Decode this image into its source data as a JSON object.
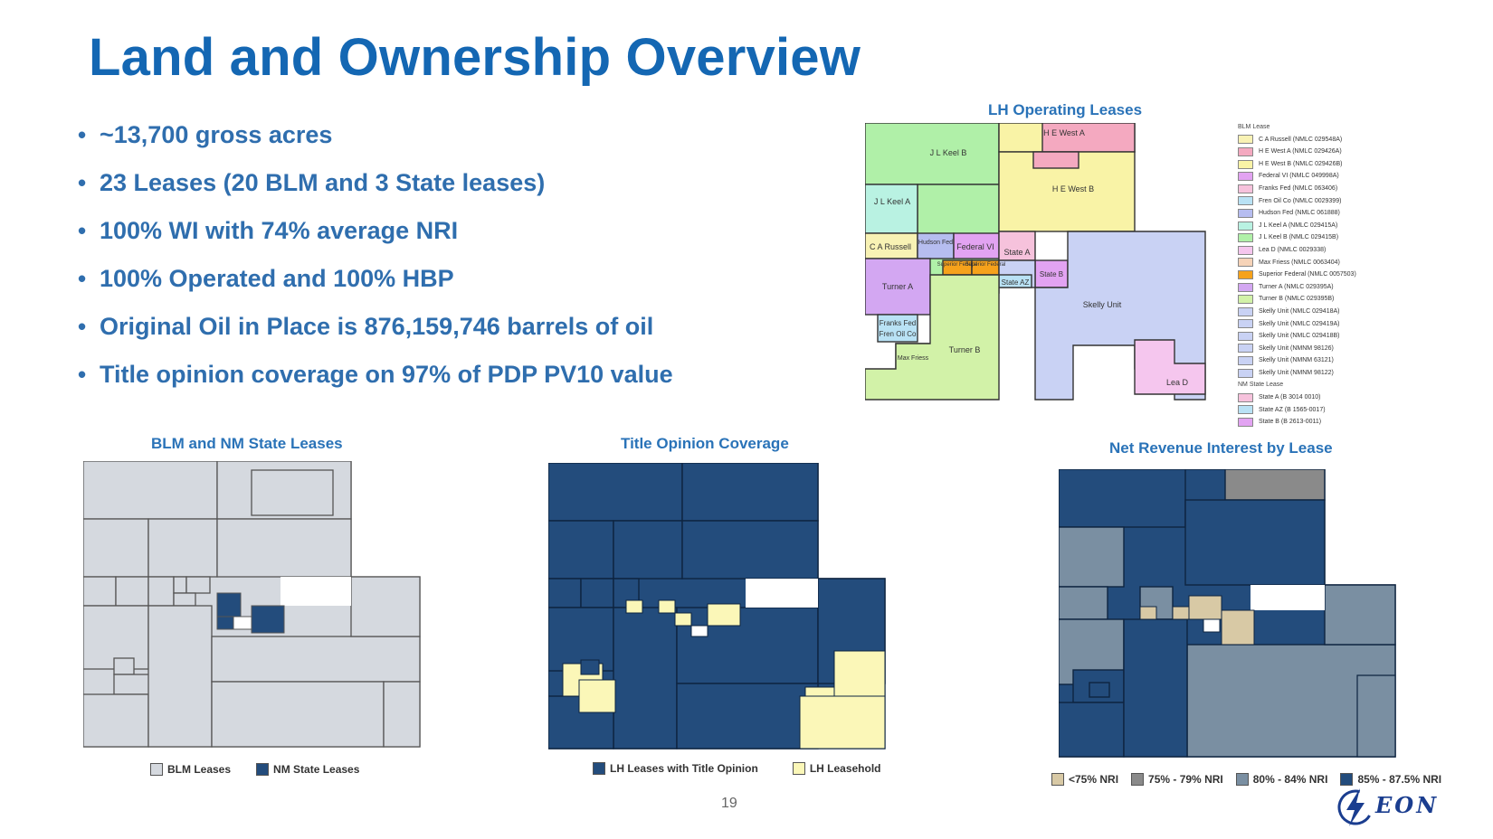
{
  "title": "Land and Ownership Overview",
  "bullets": [
    "~13,700 gross acres",
    "23 Leases (20 BLM and 3 State leases)",
    "100% WI with 74% average NRI",
    "100% Operated and 100% HBP",
    "Original Oil in Place is 876,159,746 barrels of oil",
    "Title opinion coverage on 97% of PDP PV10 value"
  ],
  "operating_map": {
    "caption": "LH Operating Leases",
    "labels": {
      "jl_keel_b": "J L Keel B",
      "he_west_a": "H E West A",
      "he_west_b": "H E West B",
      "jl_keel_a": "J L Keel A",
      "ca_russell": "C A Russell",
      "hudson_fed": "Hudson Fed",
      "federal_vi": "Federal VI",
      "state_a": "State A",
      "superior_fed": "Superior Federal",
      "superior_fed2": "Superior Federal",
      "state_b": "State B",
      "state_az": "State AZ",
      "turner_a": "Turner A",
      "skelly_unit": "Skelly Unit",
      "franks_fed": "Franks Fed",
      "fren_oil_co": "Fren Oil Co",
      "turner_b": "Turner B",
      "max_friess": "Max Friess",
      "lea_d": "Lea D"
    },
    "legend": {
      "blm_heading": "BLM Lease",
      "nm_heading": "NM State Lease",
      "blm_items": [
        {
          "label": "C A Russell (NMLC 029548A)",
          "color": "#f8f2b4"
        },
        {
          "label": "H E West A (NMLC 029426A)",
          "color": "#f4a9c0"
        },
        {
          "label": "H E West B (NMLC 029426B)",
          "color": "#f9f3a6"
        },
        {
          "label": "Federal VI (NMLC 049998A)",
          "color": "#e2a3f2"
        },
        {
          "label": "Franks Fed (NMLC 063406)",
          "color": "#f6c2dc"
        },
        {
          "label": "Fren Oil Co (NMLC 0029399)",
          "color": "#b9e2f5"
        },
        {
          "label": "Hudson Fed (NMLC 061888)",
          "color": "#b6bdf0"
        },
        {
          "label": "J L Keel A (NMLC 029415A)",
          "color": "#b9f2e2"
        },
        {
          "label": "J L Keel B (NMLC 029415B)",
          "color": "#b0f0a8"
        },
        {
          "label": "Lea D (NMLC 0029338)",
          "color": "#f5c6ee"
        },
        {
          "label": "Max Friess (NMLC 0063404)",
          "color": "#f6d3b8"
        },
        {
          "label": "Superior Federal (NMLC 0057503)",
          "color": "#f6a21b"
        },
        {
          "label": "Turner A (NMLC 029395A)",
          "color": "#d3a7f2"
        },
        {
          "label": "Turner B (NMLC 029395B)",
          "color": "#d2f2a8"
        },
        {
          "label": "Skelly Unit (NMLC 029418A)",
          "color": "#c9d2f4"
        },
        {
          "label": "Skelly Unit (NMLC 029419A)",
          "color": "#c9d2f4"
        },
        {
          "label": "Skelly Unit (NMLC 029418B)",
          "color": "#c9d2f4"
        },
        {
          "label": "Skelly Unit (NMNM 98126)",
          "color": "#c9d2f4"
        },
        {
          "label": "Skelly Unit (NMNM 63121)",
          "color": "#c9d2f4"
        },
        {
          "label": "Skelly Unit (NMNM 98122)",
          "color": "#c9d2f4"
        }
      ],
      "nm_items": [
        {
          "label": "State A (B 3014 0010)",
          "color": "#f6c2dc"
        },
        {
          "label": "State AZ (B 1565-0017)",
          "color": "#b9e2f5"
        },
        {
          "label": "State B (B 2613-0011)",
          "color": "#e2a3f2"
        }
      ]
    }
  },
  "blm_map": {
    "caption": "BLM and NM State Leases",
    "legend": [
      {
        "label": "BLM Leases",
        "color": "#d5d9df"
      },
      {
        "label": "NM State Leases",
        "color": "#234c7c"
      }
    ]
  },
  "title_map": {
    "caption": "Title Opinion Coverage",
    "legend": [
      {
        "label": "LH Leases with Title Opinion",
        "color": "#234c7c"
      },
      {
        "label": "LH Leasehold",
        "color": "#fbf7b8"
      }
    ]
  },
  "nri_map": {
    "caption": "Net Revenue Interest by Lease",
    "legend": [
      {
        "label": "<75% NRI",
        "color": "#d8c9a5"
      },
      {
        "label": "75% - 79% NRI",
        "color": "#8a8a8a"
      },
      {
        "label": "80% - 84% NRI",
        "color": "#7a8fa2"
      },
      {
        "label": "85% - 87.5% NRI",
        "color": "#234c7c"
      }
    ]
  },
  "page_number": "19",
  "logo": {
    "icon": "lightning-bolt-icon",
    "text": "EON"
  }
}
